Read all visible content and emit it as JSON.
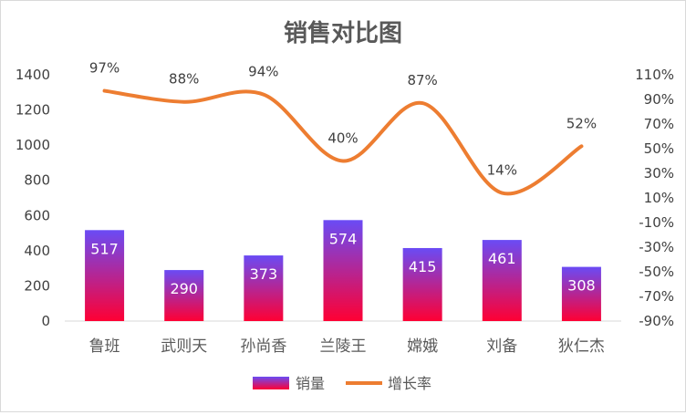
{
  "chart_data": {
    "type": "bar",
    "title": "销售对比图",
    "categories": [
      "鲁班",
      "武则天",
      "孙尚香",
      "兰陵王",
      "嫦娥",
      "刘备",
      "狄仁杰"
    ],
    "series": [
      {
        "name": "销量",
        "type": "bar",
        "axis": "left",
        "values": [
          517,
          290,
          373,
          574,
          415,
          461,
          308
        ],
        "labels": [
          "517",
          "290",
          "373",
          "574",
          "415",
          "461",
          "308"
        ]
      },
      {
        "name": "增长率",
        "type": "line",
        "axis": "right",
        "smooth": true,
        "values": [
          0.97,
          0.88,
          0.94,
          0.4,
          0.87,
          0.14,
          0.52
        ],
        "labels": [
          "97%",
          "88%",
          "94%",
          "40%",
          "87%",
          "14%",
          "52%"
        ]
      }
    ],
    "left_axis": {
      "min": 0,
      "max": 1400,
      "ticks": [
        "0",
        "200",
        "400",
        "600",
        "800",
        "1000",
        "1200",
        "1400"
      ]
    },
    "right_axis": {
      "min": -0.9,
      "max": 1.1,
      "ticks": [
        "-90%",
        "-70%",
        "-50%",
        "-30%",
        "-10%",
        "10%",
        "30%",
        "50%",
        "70%",
        "90%",
        "110%"
      ]
    },
    "grid": false,
    "legend_position": "bottom",
    "colors": {
      "bar_top": "#6a4bf5",
      "bar_bottom": "#ff0033",
      "line": "#ed7d31",
      "axis": "#d9d9d9"
    }
  }
}
